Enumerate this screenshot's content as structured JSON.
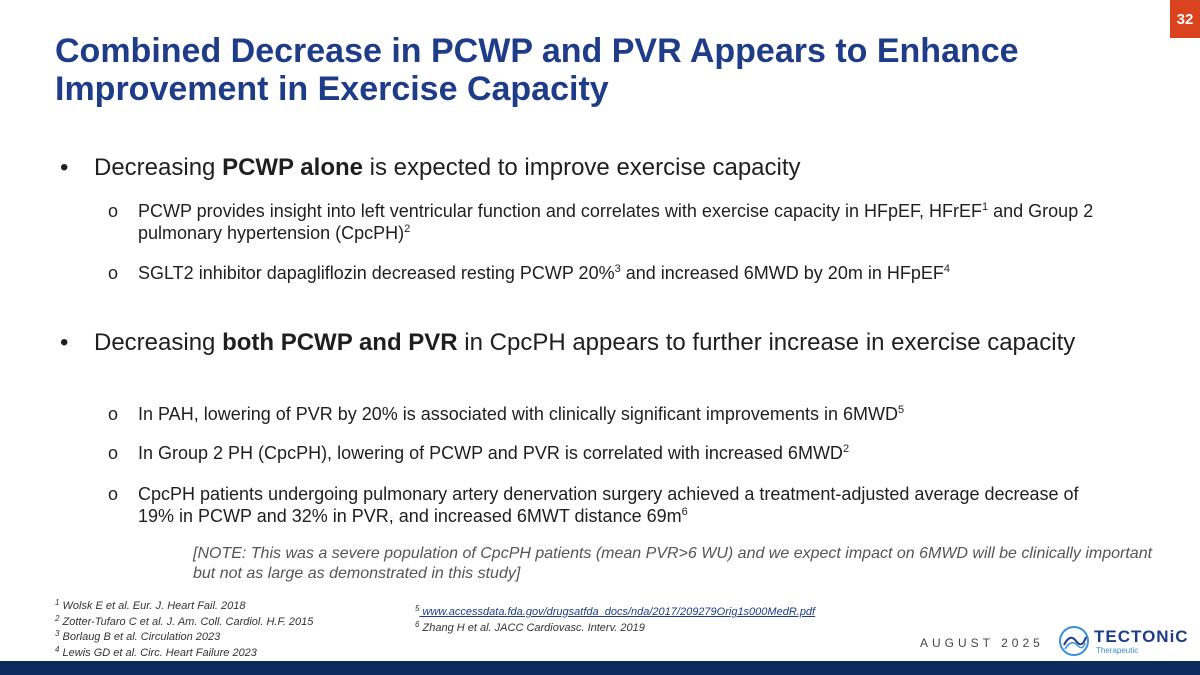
{
  "page_number": "32",
  "title": {
    "line1": "Combined Decrease in PCWP and PVR Appears to Enhance",
    "line2": "Improvement in Exercise Capacity"
  },
  "bullet1": {
    "dot": "•",
    "pre": "Decreasing ",
    "bold": "PCWP alone",
    "post": " is expected to improve exercise capacity",
    "subs": [
      {
        "mark": "o",
        "text": "PCWP provides insight into left ventricular function and correlates with exercise capacity in HFpEF, HFrEF",
        "sup1": "1",
        "text2": " and Group 2 pulmonary hypertension (CpcPH)",
        "sup2": "2"
      },
      {
        "mark": "o",
        "text": "SGLT2 inhibitor dapagliflozin decreased resting PCWP 20%",
        "sup1": "3",
        "text2": " and increased 6MWD by 20m in HFpEF",
        "sup2": "4"
      }
    ]
  },
  "bullet2": {
    "dot": "•",
    "pre": "Decreasing ",
    "bold": "both PCWP and PVR",
    "post": " in CpcPH appears to further increase in exercise capacity",
    "subs": [
      {
        "mark": "o",
        "text": "In PAH, lowering of PVR by 20% is associated with clinically significant improvements in 6MWD",
        "sup": "5"
      },
      {
        "mark": "o",
        "text": "In Group 2 PH (CpcPH), lowering of PCWP and PVR is correlated with increased 6MWD",
        "sup": "2"
      },
      {
        "mark": "o",
        "text": "CpcPH patients undergoing pulmonary artery denervation surgery achieved a treatment-adjusted average decrease of 19% in PCWP and 32% in PVR, and increased 6MWT distance 69m",
        "sup": "6"
      }
    ]
  },
  "note": "[NOTE: This was a severe population of CpcPH patients (mean PVR>6 WU) and we expect impact on 6MWD will be clinically important but not as large as demonstrated in this study]",
  "references_left": [
    {
      "num": "1",
      "text": " Wolsk E et al. Eur. J. Heart Fail. 2018"
    },
    {
      "num": "2",
      "text": " Zotter-Tufaro C et al. J. Am. Coll. Cardiol. H.F. 2015"
    },
    {
      "num": "3",
      "text": " Borlaug B et al.  Circulation 2023"
    },
    {
      "num": "4",
      "text": " Lewis GD et al. Circ. Heart Failure 2023"
    }
  ],
  "references_right": [
    {
      "num": "5",
      "text": " www.accessdata.fda.gov/drugsatfda_docs/nda/2017/209279Orig1s000MedR.pdf"
    },
    {
      "num": "6",
      "text": "  Zhang H et al. JACC Cardiovasc. Interv. 2019"
    }
  ],
  "date": "AUGUST 2025",
  "logo": {
    "name": "TECTONiC",
    "sub": "Therapeutic",
    "icon": "tectonic-logo-icon"
  },
  "colors": {
    "title": "#1f3c88",
    "badge": "#d9431e",
    "footer": "#0b2a5e"
  }
}
